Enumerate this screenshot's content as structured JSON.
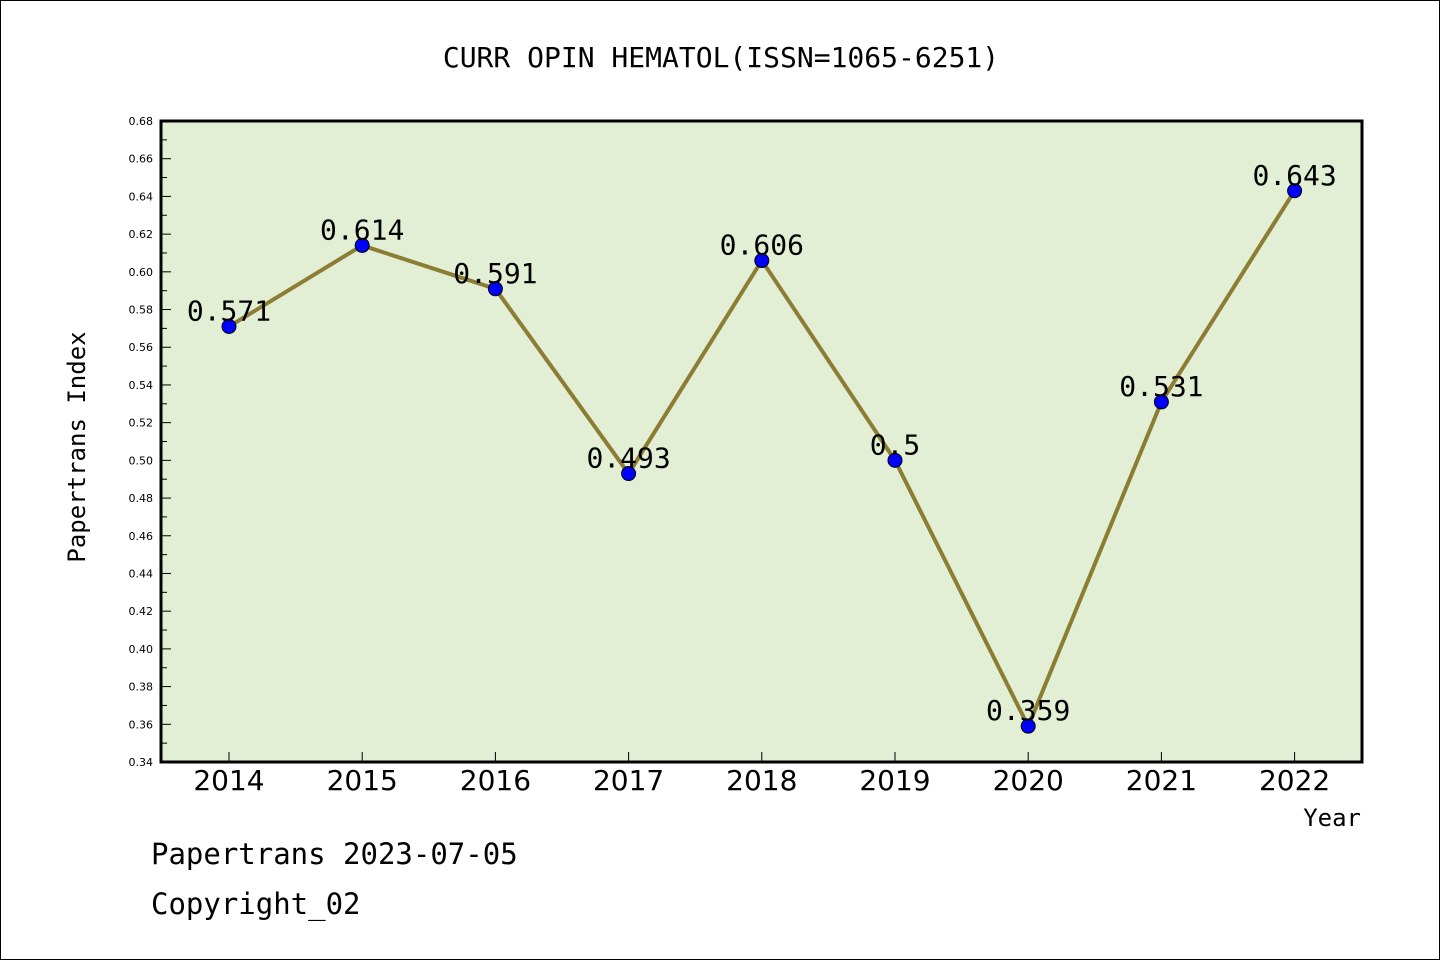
{
  "chart_data": {
    "type": "line",
    "title": "CURR OPIN HEMATOL(ISSN=1065-6251)",
    "xlabel": "Year",
    "ylabel": "Papertrans Index",
    "categories": [
      "2014",
      "2015",
      "2016",
      "2017",
      "2018",
      "2019",
      "2020",
      "2021",
      "2022"
    ],
    "series": [
      {
        "values": [
          0.571,
          0.614,
          0.591,
          0.493,
          0.606,
          0.5,
          0.359,
          0.531,
          0.643
        ],
        "labels": [
          "0.571",
          "0.614",
          "0.591",
          "0.493",
          "0.606",
          "0.5",
          "0.359",
          "0.531",
          "0.643"
        ]
      }
    ],
    "ylim": [
      0.34,
      0.68
    ],
    "ytick_labels": [
      "0.34",
      "0.36",
      "0.38",
      "0.40",
      "0.42",
      "0.44",
      "0.46",
      "0.48",
      "0.50",
      "0.52",
      "0.54",
      "0.56",
      "0.58",
      "0.60",
      "0.62",
      "0.64",
      "0.66",
      "0.68"
    ],
    "grid": false,
    "legend": "none",
    "colors": {
      "plot_background": "#e2efd5",
      "line": "#8b7d33",
      "marker": "#0000ff"
    }
  },
  "footer": {
    "line1": "Papertrans 2023-07-05",
    "line2": "Copyright_02"
  }
}
